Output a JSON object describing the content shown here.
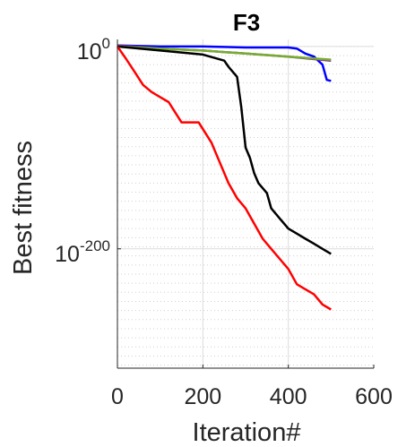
{
  "chart_data": {
    "type": "line",
    "title": "F3",
    "xlabel": "Iteration#",
    "ylabel": "Best fitness",
    "xlim": [
      0,
      600
    ],
    "ylim_log10": [
      -318,
      7
    ],
    "y_scale": "log",
    "grid": true,
    "xticks": [
      {
        "value": 0,
        "label": "0"
      },
      {
        "value": 200,
        "label": "200"
      },
      {
        "value": 400,
        "label": "400"
      },
      {
        "value": 600,
        "label": "600"
      }
    ],
    "yticks": [
      {
        "exp": 0,
        "base": "10",
        "sup": "0"
      },
      {
        "exp": -200,
        "base": "10",
        "sup": "-200"
      }
    ],
    "series": [
      {
        "color": "#0000ff",
        "x": [
          0,
          100,
          200,
          300,
          400,
          420,
          440,
          460,
          470,
          480,
          490,
          500
        ],
        "log10_y": [
          1,
          0,
          0,
          -1,
          -1,
          -2,
          -7,
          -10,
          -14,
          -18,
          -33,
          -34
        ]
      },
      {
        "color": "#7e2f8e",
        "x": [
          0,
          100,
          200,
          300,
          400,
          500
        ],
        "log10_y": [
          1,
          -2,
          -4,
          -7,
          -10,
          -14
        ]
      },
      {
        "color": "#77ac30",
        "x": [
          0,
          100,
          200,
          300,
          400,
          500
        ],
        "log10_y": [
          0,
          -2,
          -4,
          -7,
          -10,
          -13
        ]
      },
      {
        "color": "#000000",
        "x": [
          0,
          100,
          200,
          250,
          260,
          280,
          290,
          300,
          310,
          320,
          330,
          350,
          360,
          380,
          400,
          420,
          440,
          460,
          480,
          500
        ],
        "log10_y": [
          0,
          -4,
          -8,
          -14,
          -20,
          -30,
          -60,
          -100,
          -110,
          -125,
          -135,
          -145,
          -160,
          -170,
          -180,
          -185,
          -190,
          -195,
          -200,
          -205
        ]
      },
      {
        "color": "#ff0000",
        "x": [
          0,
          20,
          40,
          60,
          80,
          100,
          120,
          150,
          190,
          220,
          240,
          260,
          280,
          300,
          320,
          340,
          360,
          380,
          400,
          420,
          440,
          460,
          480,
          500
        ],
        "log10_y": [
          0,
          -12,
          -25,
          -38,
          -45,
          -50,
          -55,
          -75,
          -75,
          -95,
          -115,
          -135,
          -150,
          -160,
          -175,
          -190,
          -200,
          -210,
          -220,
          -235,
          -240,
          -245,
          -255,
          -260
        ]
      }
    ]
  }
}
